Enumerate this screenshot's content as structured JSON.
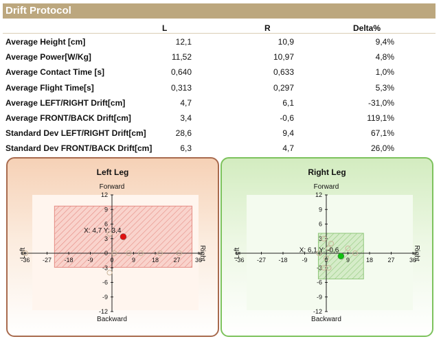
{
  "title": "Drift Protocol",
  "columns": {
    "label_l": "L",
    "label_r": "R",
    "label_delta": "Delta%"
  },
  "rows": [
    {
      "label": "Average Height [cm]",
      "l": "12,1",
      "r": "10,9",
      "delta": "9,4%"
    },
    {
      "label": "Average Power[W/Kg]",
      "l": "11,52",
      "r": "10,97",
      "delta": "4,8%"
    },
    {
      "label": "Average Contact Time [s]",
      "l": "0,640",
      "r": "0,633",
      "delta": "1,0%"
    },
    {
      "label": "Average Flight Time[s]",
      "l": "0,313",
      "r": "0,297",
      "delta": "5,3%"
    },
    {
      "label": "Average LEFT/RIGHT Drift[cm]",
      "l": "4,7",
      "r": "6,1",
      "delta": "-31,0%"
    },
    {
      "label": "Average FRONT/BACK Drift[cm]",
      "l": "3,4",
      "r": "-0,6",
      "delta": "119,1%"
    },
    {
      "label": "Standard Dev LEFT/RIGHT Drift[cm]",
      "l": "28,6",
      "r": "9,4",
      "delta": "67,1%"
    },
    {
      "label": "Standard Dev FRONT/BACK Drift[cm]",
      "l": "6,3",
      "r": "4,7",
      "delta": "26,0%"
    }
  ],
  "chart_data": [
    {
      "type": "scatter",
      "title": "Left Leg",
      "top_label": "Forward",
      "bottom_label": "Backward",
      "left_label": "Left",
      "right_label": "Right",
      "xlim": [
        -36,
        36
      ],
      "ylim": [
        -12,
        12
      ],
      "x_ticks": [
        "-36",
        "-27",
        "-18",
        "-9",
        "0",
        "9",
        "18",
        "27",
        "36"
      ],
      "y_ticks": [
        "12",
        "9",
        "6",
        "3",
        "0",
        "-3",
        "-6",
        "-9",
        "-12"
      ],
      "x_tick_values": [
        -36,
        -27,
        -18,
        -9,
        0,
        9,
        18,
        27,
        36
      ],
      "y_tick_values": [
        12,
        9,
        6,
        3,
        0,
        -3,
        -6,
        -9,
        -12
      ],
      "mean": {
        "x": 4.7,
        "y": 3.4,
        "label": "X: 4,7 Y: 3,4"
      },
      "sd_box": {
        "x0": -23.9,
        "x1": 33.3,
        "y0": -2.9,
        "y1": 9.7
      },
      "samples": [
        [
          -36,
          0
        ],
        [
          -1,
          4
        ],
        [
          -1,
          -4
        ],
        [
          1,
          0
        ],
        [
          7,
          0
        ],
        [
          12,
          0
        ],
        [
          20,
          0
        ],
        [
          28,
          0
        ]
      ],
      "mean_color": "#e01010",
      "box_color": "#e58c84",
      "box_fill": "#f9d3cc",
      "plot_bg": "#fff5ee"
    },
    {
      "type": "scatter",
      "title": "Right Leg",
      "top_label": "Forward",
      "bottom_label": "Backward",
      "left_label": "Left",
      "right_label": "Right",
      "xlim": [
        -36,
        36
      ],
      "ylim": [
        -12,
        12
      ],
      "x_ticks": [
        "-36",
        "-27",
        "-18",
        "-9",
        "0",
        "9",
        "18",
        "27",
        "36"
      ],
      "y_ticks": [
        "12",
        "9",
        "6",
        "3",
        "0",
        "-3",
        "-6",
        "-9",
        "-12"
      ],
      "x_tick_values": [
        -36,
        -27,
        -18,
        -9,
        0,
        9,
        18,
        27,
        36
      ],
      "y_tick_values": [
        12,
        9,
        6,
        3,
        0,
        -3,
        -6,
        -9,
        -12
      ],
      "mean": {
        "x": 6.1,
        "y": -0.6,
        "label": "X: 6,1 Y: -0,6"
      },
      "sd_box": {
        "x0": -3.3,
        "x1": 15.5,
        "y0": -5.3,
        "y1": 4.1
      },
      "samples": [
        [
          -3,
          0
        ],
        [
          -1,
          3
        ],
        [
          -1,
          -3
        ],
        [
          0,
          -1
        ],
        [
          1,
          1
        ],
        [
          2,
          2
        ],
        [
          9,
          1
        ],
        [
          12,
          0
        ],
        [
          1,
          -3
        ]
      ],
      "mean_color": "#10c010",
      "box_color": "#8fc77a",
      "box_fill": "#d5ecc8",
      "plot_bg": "#f4fbef"
    }
  ]
}
